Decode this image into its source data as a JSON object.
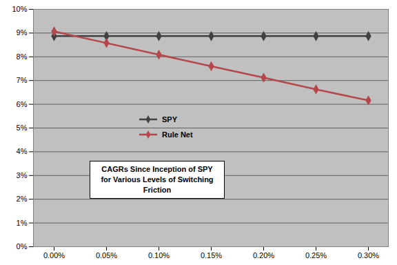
{
  "chart_data": {
    "type": "line",
    "categories": [
      "0.00%",
      "0.05%",
      "0.10%",
      "0.15%",
      "0.20%",
      "0.25%",
      "0.30%"
    ],
    "series": [
      {
        "name": "SPY",
        "color": "#404040",
        "marker": "diamond",
        "values": [
          8.87,
          8.87,
          8.87,
          8.87,
          8.87,
          8.87,
          8.87
        ]
      },
      {
        "name": "Rule Net",
        "color": "#b5474a",
        "marker": "diamond",
        "values": [
          9.07,
          8.58,
          8.09,
          7.6,
          7.12,
          6.63,
          6.16
        ]
      }
    ],
    "annotations": [
      "CAGRs Since Inception of SPY\nfor Various Levels of Switching Friction"
    ],
    "ylim": [
      0,
      10
    ],
    "yticks": [
      {
        "value": 0,
        "label": "0%"
      },
      {
        "value": 1,
        "label": "1%"
      },
      {
        "value": 2,
        "label": "2%"
      },
      {
        "value": 3,
        "label": "3%"
      },
      {
        "value": 4,
        "label": "4%"
      },
      {
        "value": 5,
        "label": "5%"
      },
      {
        "value": 6,
        "label": "6%"
      },
      {
        "value": 7,
        "label": "7%"
      },
      {
        "value": 8,
        "label": "8%"
      },
      {
        "value": 9,
        "label": "9%"
      },
      {
        "value": 10,
        "label": "10%"
      }
    ],
    "grid": true
  }
}
